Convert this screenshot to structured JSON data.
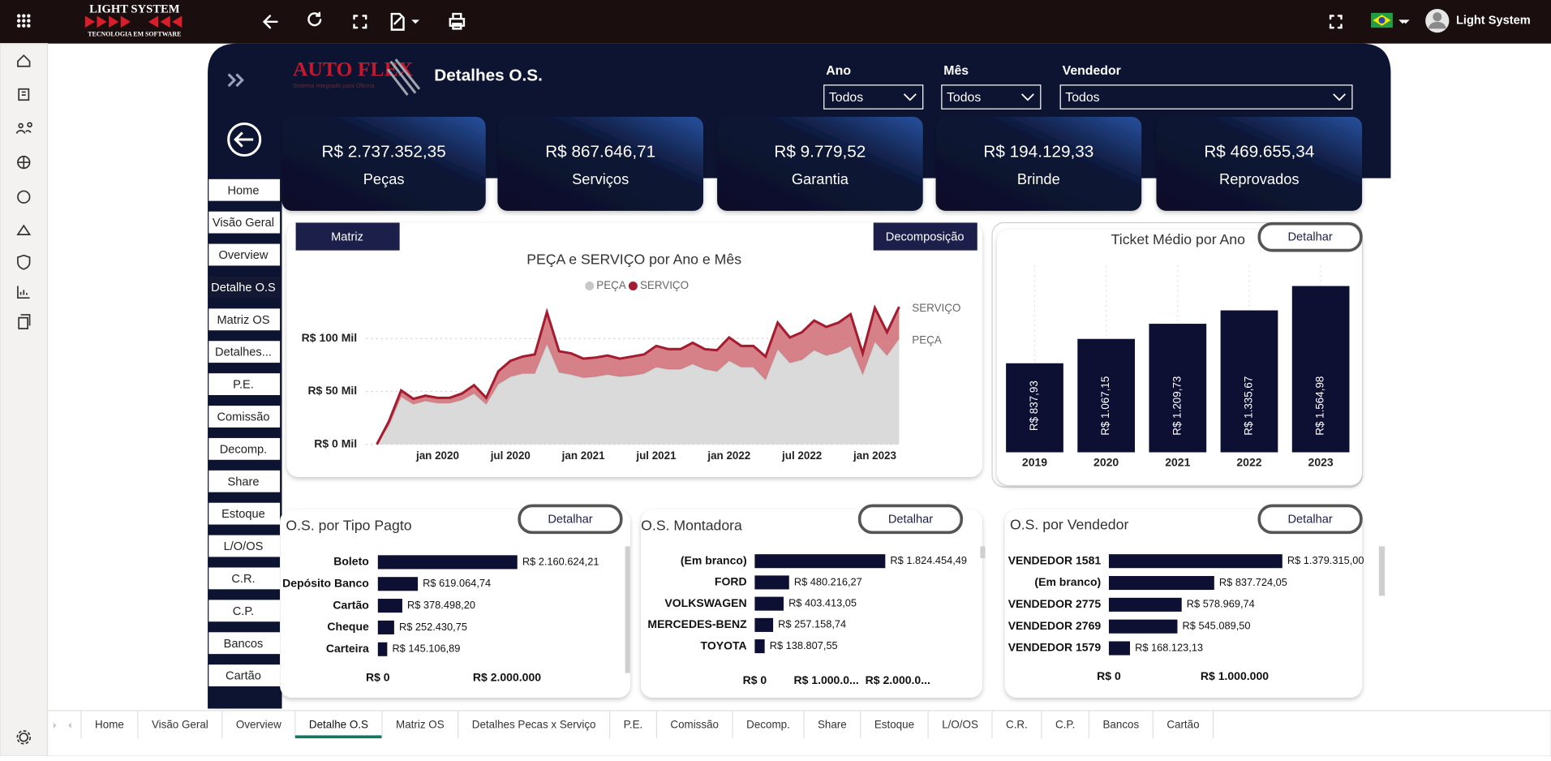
{
  "app": {
    "logo_title": "LIGHT SYSTEM",
    "logo_subtitle": "TECNOLOGIA EM SOFTWARE",
    "user": "Light System"
  },
  "report": {
    "logo": "AUTO FLEX",
    "logo_tagline": "Sistema Integrado para Oficina",
    "title": "Detalhes O.S.",
    "filters": [
      {
        "label": "Ano",
        "value": "Todos"
      },
      {
        "label": "Mês",
        "value": "Todos"
      },
      {
        "label": "Vendedor",
        "value": "Todos"
      }
    ],
    "kpis": [
      {
        "value": "R$ 2.737.352,35",
        "label": "Peças"
      },
      {
        "value": "R$ 867.646,71",
        "label": "Serviços"
      },
      {
        "value": "R$ 9.779,52",
        "label": "Garantia"
      },
      {
        "value": "R$ 194.129,33",
        "label": "Brinde"
      },
      {
        "value": "R$ 469.655,34",
        "label": "Reprovados"
      }
    ],
    "nav": [
      "Home",
      "Visão Geral",
      "Overview",
      "Detalhe O.S",
      "Matriz OS",
      "Detalhes...",
      "P.E.",
      "Comissão",
      "Decomp.",
      "Share",
      "Estoque",
      "L/O/OS",
      "C.R.",
      "C.P.",
      "Bancos",
      "Cartão"
    ],
    "buttons": {
      "matriz": "Matriz",
      "decomposicao": "Decomposição",
      "detalhar": "Detalhar"
    }
  },
  "chart_data": [
    {
      "type": "area",
      "stacked": true,
      "title": "PEÇA e SERVIÇO por Ano e Mês",
      "categories": [
        null,
        null,
        null,
        null,
        null,
        "jan 2020",
        null,
        null,
        null,
        null,
        null,
        "jul 2020",
        null,
        null,
        null,
        null,
        null,
        "jan 2021",
        null,
        null,
        null,
        null,
        null,
        "jul 2021",
        null,
        null,
        null,
        null,
        null,
        "jan 2022",
        null,
        null,
        null,
        null,
        null,
        "jul 2022",
        null,
        null,
        null,
        null,
        null,
        "jan 2023",
        null,
        null
      ],
      "series": [
        {
          "name": "PEÇA",
          "color": "#c8c8c8",
          "values": [
            0,
            18,
            45,
            38,
            41,
            39,
            39,
            42,
            48,
            38,
            57,
            64,
            67,
            67,
            95,
            68,
            66,
            63,
            64,
            66,
            64,
            65,
            67,
            73,
            71,
            71,
            76,
            71,
            69,
            79,
            73,
            73,
            61,
            90,
            77,
            80,
            89,
            84,
            87,
            93,
            66,
            97,
            84,
            100
          ]
        },
        {
          "name": "SERVIÇO",
          "color": "#a51c30",
          "values": [
            0,
            4,
            6,
            5,
            5,
            5,
            5,
            6,
            8,
            6,
            12,
            15,
            16,
            18,
            30,
            20,
            20,
            18,
            18,
            18,
            17,
            18,
            18,
            20,
            19,
            19,
            20,
            19,
            20,
            22,
            20,
            20,
            22,
            25,
            24,
            26,
            28,
            27,
            28,
            30,
            20,
            32,
            22,
            30
          ]
        }
      ],
      "ylim": [
        0,
        140
      ],
      "yticks": [
        {
          "value": 0,
          "label": "R$ 0 Mil"
        },
        {
          "value": 50,
          "label": "R$ 50 Mil"
        },
        {
          "value": 100,
          "label": "R$ 100 Mil"
        }
      ],
      "grid": true
    },
    {
      "type": "bar",
      "title": "Ticket Médio por Ano",
      "color": "#0d0f33",
      "categories": [
        "2019",
        "2020",
        "2021",
        "2022",
        "2023"
      ],
      "values": [
        837.93,
        1067.15,
        1209.73,
        1335.67,
        1564.98
      ],
      "value_labels": [
        "R$ 837,93",
        "R$ 1.067,15",
        "R$ 1.209,73",
        "R$ 1.335,67",
        "R$ 1.564,98"
      ]
    },
    {
      "type": "hbar",
      "title": "O.S. por Tipo Pagto",
      "color": "#0d0f33",
      "categories": [
        "Boleto",
        "Depósito Banco",
        "Cartão",
        "Cheque",
        "Carteira"
      ],
      "values": [
        2160624.21,
        619064.74,
        378498.2,
        252430.75,
        145106.89
      ],
      "value_labels": [
        "R$ 2.160.624,21",
        "R$ 619.064,74",
        "R$ 378.498,20",
        "R$ 252.430,75",
        "R$ 145.106,89"
      ],
      "xlim": [
        0,
        3800000
      ],
      "xticks": [
        {
          "value": 0,
          "label": "R$ 0"
        },
        {
          "value": 2000000,
          "label": "R$ 2.000.000"
        }
      ]
    },
    {
      "type": "hbar",
      "title": "O.S. Montadora",
      "color": "#0d0f33",
      "categories": [
        "(Em branco)",
        "FORD",
        "VOLKSWAGEN",
        "MERCEDES-BENZ",
        "TOYOTA"
      ],
      "values": [
        1824454.49,
        480216.27,
        403413.05,
        257158.74,
        138807.55
      ],
      "value_labels": [
        "R$ 1.824.454,49",
        "R$ 480.216,27",
        "R$ 403.413,05",
        "R$ 257.158,74",
        "R$ 138.807,55"
      ],
      "xlim": [
        0,
        3000000
      ],
      "xticks": [
        {
          "value": 0,
          "label": "R$ 0"
        },
        {
          "value": 1000000,
          "label": "R$ 1.000.0..."
        },
        {
          "value": 2000000,
          "label": "R$ 2.000.0..."
        }
      ]
    },
    {
      "type": "hbar",
      "title": "O.S. por Vendedor",
      "color": "#0d0f33",
      "categories": [
        "VENDEDOR 1581",
        "(Em branco)",
        "VENDEDOR 2775",
        "VENDEDOR 2769",
        "VENDEDOR 1579"
      ],
      "values": [
        1379315.0,
        837724.05,
        578969.74,
        545089.5,
        168123.13
      ],
      "value_labels": [
        "R$ 1.379.315,00",
        "R$ 837.724,05",
        "R$ 578.969,74",
        "R$ 545.089,50",
        "R$ 168.123,13"
      ],
      "xlim": [
        0,
        2100000
      ],
      "xticks": [
        {
          "value": 0,
          "label": "R$ 0"
        },
        {
          "value": 1000000,
          "label": "R$ 1.000.000"
        }
      ]
    }
  ],
  "tabs": [
    "Home",
    "Visão Geral",
    "Overview",
    "Detalhe O.S",
    "Matriz OS",
    "Detalhes Pecas x Serviço",
    "P.E.",
    "Comissão",
    "Decomp.",
    "Share",
    "Estoque",
    "L/O/OS",
    "C.R.",
    "C.P.",
    "Bancos",
    "Cartão"
  ]
}
